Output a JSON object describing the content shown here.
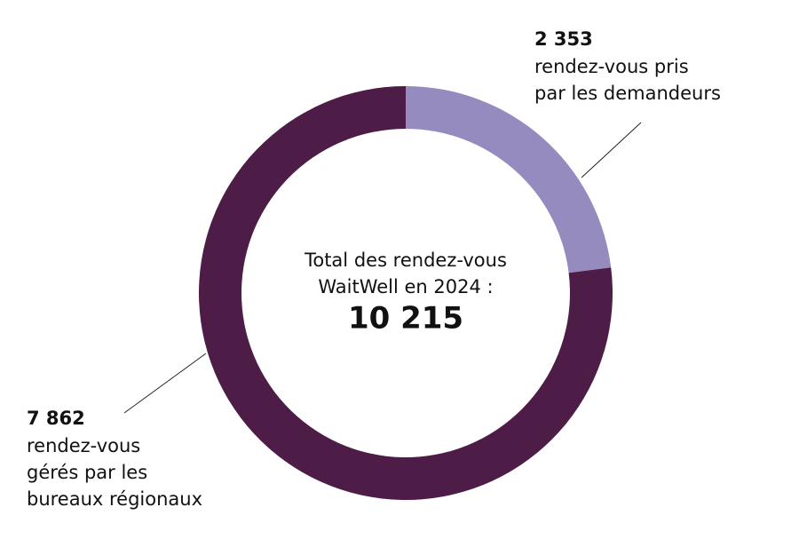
{
  "chart_data": {
    "type": "donut",
    "categories": [
      [
        "rendez-vous pris",
        "par les demandeurs"
      ],
      [
        "rendez-vous",
        "gérés par les",
        "bureaux régionaux"
      ]
    ],
    "values": [
      2353,
      7862
    ],
    "value_labels": [
      "2 353",
      "7 862"
    ],
    "colors": [
      "#968bbf",
      "#4d1c47"
    ],
    "center_text": [
      "Total des rendez-vous",
      "WaitWell en 2024 :"
    ],
    "center_value": {
      "value": 10215,
      "label": "10 215"
    }
  }
}
